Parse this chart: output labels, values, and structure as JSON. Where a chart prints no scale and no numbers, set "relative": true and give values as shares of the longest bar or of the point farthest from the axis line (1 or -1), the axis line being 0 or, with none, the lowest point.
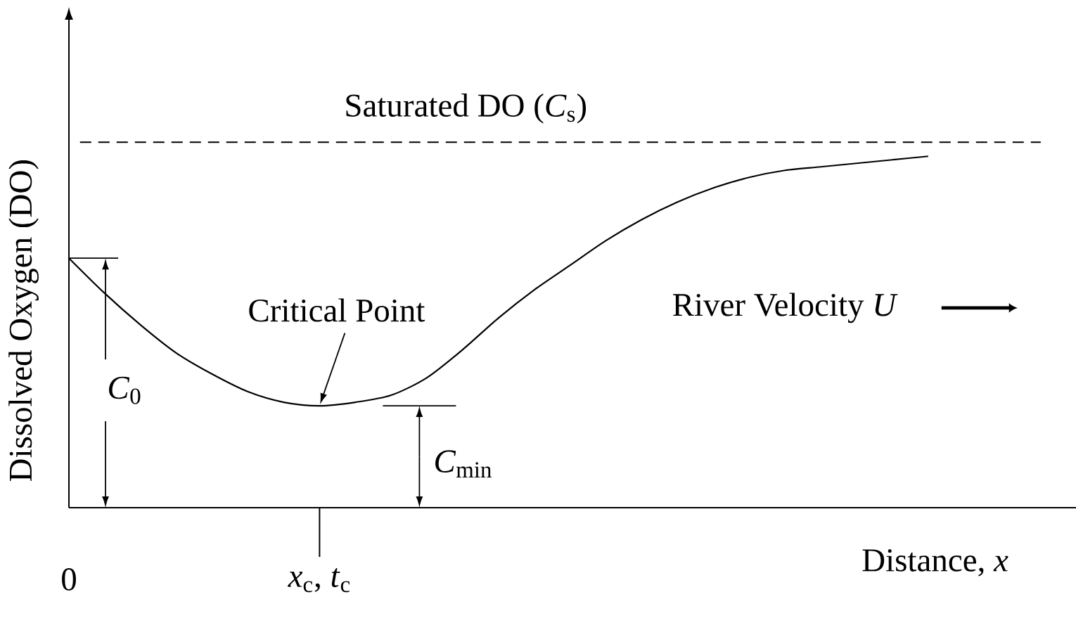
{
  "chart_data": {
    "type": "line",
    "relative": true,
    "ylabel": "Dissolved Oxygen (DO)",
    "xlabel": "Distance, *x*",
    "categories": [
      "0",
      null,
      null,
      null,
      null,
      null,
      null,
      "*x*$_{c}$, *t*$_{c}$",
      null,
      null,
      null,
      null,
      null,
      null,
      null,
      null,
      null,
      null,
      null,
      null,
      null,
      null,
      null,
      null,
      null
    ],
    "series": [
      {
        "color": "#000000",
        "values": [
          0.71,
          0.61,
          0.52,
          0.44,
          0.38,
          0.33,
          0.3,
          0.29,
          0.3,
          0.32,
          0.37,
          0.45,
          0.54,
          0.62,
          0.69,
          0.76,
          0.82,
          0.87,
          0.91,
          0.94,
          0.96,
          0.97,
          0.98,
          0.99,
          1
        ]
      }
    ],
    "ref_lines": [
      {
        "axis": "y",
        "value": 1.04,
        "label": "Saturated DO (*C*$_{s}$)",
        "line_style": "dashed"
      }
    ],
    "annotations": [
      {
        "text": "Critical Point",
        "x": "*x*$_{c}$, *t*$_{c}$",
        "y": 0.29
      },
      "*C*$_{0}$",
      "*C*$_{min}$",
      "River Velocity *U*"
    ],
    "marker": "none",
    "line_style": "solid"
  }
}
